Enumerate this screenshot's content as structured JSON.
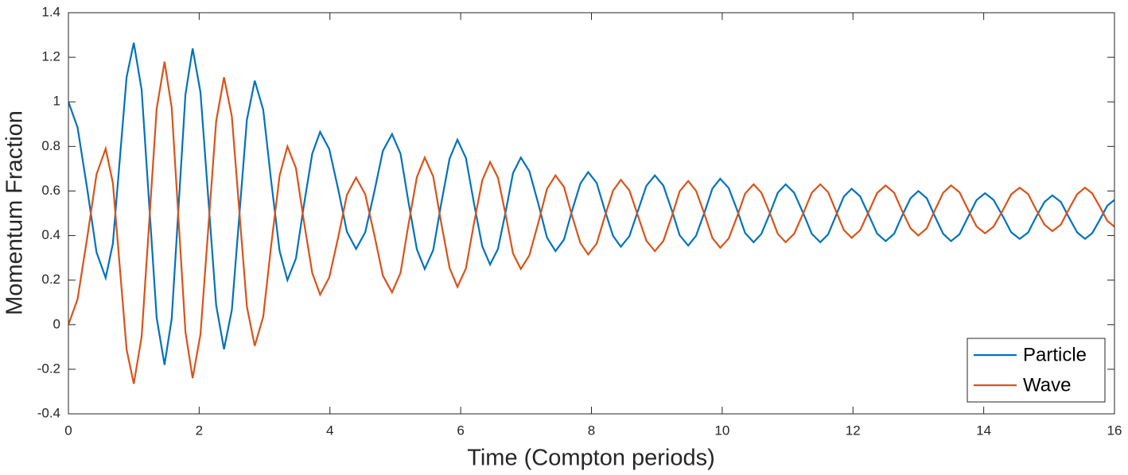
{
  "chart_data": {
    "type": "line",
    "x_label": "Time (Compton periods)",
    "y_label": "Momentum Fraction",
    "xlim": [
      0,
      16
    ],
    "xticks": [
      0,
      2,
      4,
      6,
      8,
      10,
      12,
      14,
      16
    ],
    "ylim": [
      -0.4,
      1.4
    ],
    "yticks": [
      -0.4,
      -0.2,
      0,
      0.2,
      0.4,
      0.6,
      0.8,
      1,
      1.2,
      1.4
    ],
    "grid": false,
    "legend_position": "lower-right",
    "x": [
      0,
      0.14,
      0.29,
      0.43,
      0.57,
      0.68,
      0.785,
      0.89,
      1.0,
      1.12,
      1.235,
      1.35,
      1.47,
      1.58,
      1.685,
      1.79,
      1.9,
      2.02,
      2.14,
      2.26,
      2.38,
      2.5,
      2.615,
      2.73,
      2.85,
      2.98,
      3.1,
      3.23,
      3.35,
      3.48,
      3.6,
      3.73,
      3.85,
      3.99,
      4.13,
      4.26,
      4.4,
      4.54,
      4.68,
      4.81,
      4.95,
      5.08,
      5.2,
      5.33,
      5.45,
      5.58,
      5.7,
      5.83,
      5.95,
      6.08,
      6.2,
      6.33,
      6.45,
      6.57,
      6.69,
      6.8,
      6.92,
      7.05,
      7.19,
      7.32,
      7.45,
      7.58,
      7.7,
      7.83,
      7.95,
      8.08,
      8.2,
      8.33,
      8.45,
      8.58,
      8.71,
      8.84,
      8.97,
      9.1,
      9.23,
      9.35,
      9.48,
      9.6,
      9.73,
      9.85,
      9.97,
      10.1,
      10.23,
      10.35,
      10.48,
      10.6,
      10.73,
      10.85,
      10.97,
      11.1,
      11.24,
      11.37,
      11.5,
      11.62,
      11.74,
      11.86,
      11.98,
      12.11,
      12.24,
      12.37,
      12.5,
      12.63,
      12.75,
      12.88,
      13.0,
      13.13,
      13.25,
      13.38,
      13.5,
      13.63,
      13.76,
      13.89,
      14.02,
      14.15,
      14.29,
      14.42,
      14.55,
      14.68,
      14.8,
      14.93,
      15.05,
      15.18,
      15.3,
      15.43,
      15.55,
      15.66,
      15.78,
      15.89,
      16
    ],
    "series": [
      {
        "name": "Particle",
        "color": "#0072BD",
        "values": [
          1.0,
          0.885,
          0.605,
          0.325,
          0.21,
          0.364,
          0.738,
          1.111,
          1.265,
          1.054,
          0.543,
          0.031,
          -0.18,
          0.027,
          0.53,
          1.032,
          1.24,
          1.043,
          0.565,
          0.087,
          -0.11,
          0.066,
          0.493,
          0.919,
          1.095,
          0.964,
          0.648,
          0.331,
          0.2,
          0.297,
          0.533,
          0.768,
          0.865,
          0.788,
          0.603,
          0.417,
          0.34,
          0.415,
          0.598,
          0.78,
          0.855,
          0.767,
          0.553,
          0.338,
          0.25,
          0.335,
          0.54,
          0.745,
          0.83,
          0.748,
          0.55,
          0.352,
          0.27,
          0.34,
          0.51,
          0.68,
          0.75,
          0.689,
          0.54,
          0.391,
          0.33,
          0.382,
          0.508,
          0.633,
          0.685,
          0.636,
          0.518,
          0.399,
          0.35,
          0.397,
          0.51,
          0.623,
          0.67,
          0.624,
          0.513,
          0.401,
          0.355,
          0.399,
          0.505,
          0.611,
          0.655,
          0.613,
          0.513,
          0.412,
          0.37,
          0.408,
          0.5,
          0.592,
          0.63,
          0.592,
          0.5,
          0.408,
          0.37,
          0.405,
          0.49,
          0.575,
          0.61,
          0.576,
          0.493,
          0.409,
          0.375,
          0.408,
          0.488,
          0.567,
          0.6,
          0.567,
          0.488,
          0.408,
          0.375,
          0.406,
          0.483,
          0.559,
          0.59,
          0.56,
          0.488,
          0.415,
          0.385,
          0.414,
          0.483,
          0.551,
          0.58,
          0.551,
          0.483,
          0.414,
          0.385,
          0.411,
          0.473,
          0.534,
          0.56
        ]
      },
      {
        "name": "Wave",
        "color": "#D95319",
        "values": [
          0,
          0.115,
          0.395,
          0.675,
          0.79,
          0.636,
          0.262,
          -0.111,
          -0.265,
          -0.054,
          0.457,
          0.969,
          1.18,
          0.973,
          0.47,
          -0.032,
          -0.24,
          -0.043,
          0.435,
          0.913,
          1.11,
          0.934,
          0.507,
          0.081,
          -0.095,
          0.036,
          0.352,
          0.669,
          0.8,
          0.703,
          0.467,
          0.232,
          0.135,
          0.212,
          0.397,
          0.583,
          0.66,
          0.585,
          0.402,
          0.22,
          0.145,
          0.233,
          0.447,
          0.662,
          0.75,
          0.665,
          0.46,
          0.255,
          0.17,
          0.252,
          0.45,
          0.648,
          0.73,
          0.66,
          0.49,
          0.32,
          0.25,
          0.311,
          0.46,
          0.609,
          0.67,
          0.618,
          0.492,
          0.367,
          0.315,
          0.364,
          0.482,
          0.601,
          0.65,
          0.603,
          0.49,
          0.377,
          0.33,
          0.376,
          0.487,
          0.599,
          0.645,
          0.601,
          0.495,
          0.389,
          0.345,
          0.387,
          0.487,
          0.588,
          0.63,
          0.592,
          0.5,
          0.408,
          0.37,
          0.408,
          0.5,
          0.592,
          0.63,
          0.595,
          0.51,
          0.425,
          0.39,
          0.424,
          0.507,
          0.591,
          0.625,
          0.592,
          0.512,
          0.433,
          0.4,
          0.433,
          0.512,
          0.592,
          0.625,
          0.594,
          0.517,
          0.441,
          0.41,
          0.44,
          0.512,
          0.585,
          0.615,
          0.586,
          0.517,
          0.449,
          0.42,
          0.449,
          0.517,
          0.586,
          0.615,
          0.589,
          0.527,
          0.466,
          0.44
        ]
      }
    ]
  }
}
